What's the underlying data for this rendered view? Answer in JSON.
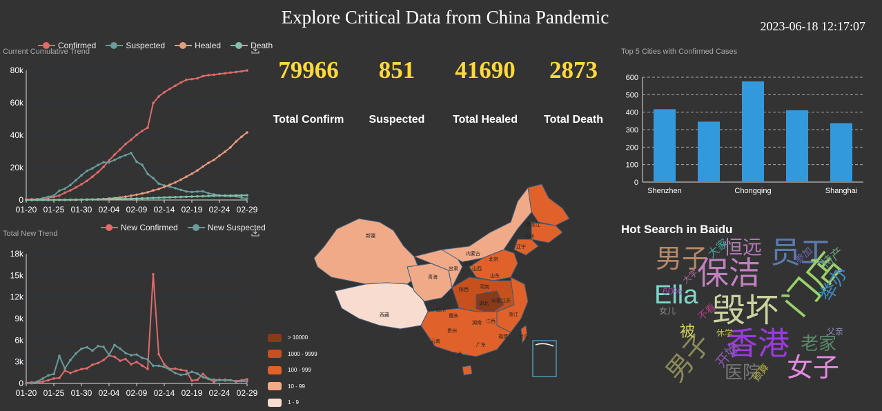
{
  "header": {
    "title": "Explore Critical Data from China Pandemic",
    "datetime": "2023-06-18 12:17:07"
  },
  "stats": [
    {
      "value": "79966",
      "label": "Total Confirm"
    },
    {
      "value": "851",
      "label": "Suspected"
    },
    {
      "value": "41690",
      "label": "Total Healed"
    },
    {
      "value": "2873",
      "label": "Total Death"
    }
  ],
  "colors": {
    "confirmed": "#e06a6a",
    "suspected": "#6a9a9a",
    "healed": "#e89a80",
    "death": "#7fc3a5",
    "bar": "#3399dd",
    "highlight": "#ffd83b"
  },
  "trend_panel": {
    "caption": "Current Cumulative Trend",
    "download_icon": "download-icon"
  },
  "new_panel": {
    "caption": "Total New Trend",
    "download_icon": "download-icon"
  },
  "bar_panel": {
    "caption": "Top 5 Cities with Confirmed Cases"
  },
  "map_panel": {
    "legend": [
      {
        "label": "> 10000",
        "color": "#8a3a1a"
      },
      {
        "label": "1000 - 9999",
        "color": "#c8501c"
      },
      {
        "label": "100 - 999",
        "color": "#e0622a"
      },
      {
        "label": "10 - 99",
        "color": "#f0aa88"
      },
      {
        "label": "1 - 9",
        "color": "#f9dcd0"
      }
    ],
    "province_labels": [
      "新疆",
      "西藏",
      "青海",
      "甘肃",
      "内蒙古",
      "黑龙江",
      "吉林",
      "辽宁",
      "北京",
      "宁夏",
      "山西",
      "山东",
      "陕西",
      "河南",
      "四川",
      "湖北",
      "安徽",
      "江苏",
      "重庆",
      "湖南",
      "江西",
      "浙江",
      "贵州",
      "云南",
      "广西",
      "广东",
      "福建",
      "台湾"
    ]
  },
  "hot_search": {
    "title": "Hot Search in Baidu",
    "words": [
      {
        "text": "男子",
        "color": "#b68a6a"
      },
      {
        "text": "恒远",
        "color": "#b07ab0"
      },
      {
        "text": "员工",
        "color": "#5a7ab0"
      },
      {
        "text": "保洁",
        "color": "#c080c0"
      },
      {
        "text": "Ella",
        "color": "#7fd6c8"
      },
      {
        "text": "毁坏",
        "color": "#c9d3a0"
      },
      {
        "text": "门店",
        "color": "#9ad06a"
      },
      {
        "text": "举办",
        "color": "#3a8ac0"
      },
      {
        "text": "香港",
        "color": "#9b3ae0"
      },
      {
        "text": "男子",
        "color": "#8a8a5a"
      },
      {
        "text": "医院",
        "color": "#777"
      },
      {
        "text": "女子",
        "color": "#e28ae0"
      },
      {
        "text": "老家",
        "color": "#5a8a6a"
      },
      {
        "text": "开始",
        "color": "#8a5ab0"
      },
      {
        "text": "大家",
        "color": "#4aa0a0"
      },
      {
        "text": "特产",
        "color": "#6aa07a"
      },
      {
        "text": "60%",
        "color": "#9a4ab0"
      },
      {
        "text": "不看",
        "color": "#b04080"
      },
      {
        "text": "女儿",
        "color": "#888"
      },
      {
        "text": "休学",
        "color": "#c0c04a"
      },
      {
        "text": "父亲",
        "color": "#9090c0"
      },
      {
        "text": "预算",
        "color": "#b0b040"
      },
      {
        "text": "大学",
        "color": "#b06a9a"
      },
      {
        "text": "参加",
        "color": "#6a6ab0"
      },
      {
        "text": "被",
        "color": "#d0d060"
      }
    ]
  },
  "chart_data": [
    {
      "type": "line",
      "title": "Current Cumulative Trend",
      "x": [
        "01-20",
        "01-21",
        "01-22",
        "01-23",
        "01-24",
        "01-25",
        "01-26",
        "01-27",
        "01-28",
        "01-29",
        "01-30",
        "01-31",
        "02-01",
        "02-02",
        "02-03",
        "02-04",
        "02-05",
        "02-06",
        "02-07",
        "02-08",
        "02-09",
        "02-10",
        "02-11",
        "02-12",
        "02-13",
        "02-14",
        "02-15",
        "02-16",
        "02-17",
        "02-18",
        "02-19",
        "02-20",
        "02-21",
        "02-22",
        "02-23",
        "02-24",
        "02-25",
        "02-26",
        "02-27",
        "02-28",
        "02-29"
      ],
      "xticks": [
        "01-20",
        "01-25",
        "01-30",
        "02-04",
        "02-09",
        "02-14",
        "02-19",
        "02-24",
        "02-29"
      ],
      "yticks": [
        "0",
        "20k",
        "40k",
        "60k",
        "80k"
      ],
      "ylim": [
        0,
        80000
      ],
      "legend_position": "top",
      "grid": true,
      "series": [
        {
          "name": "Confirmed",
          "values": [
            291,
            440,
            571,
            830,
            1287,
            1975,
            2744,
            4515,
            5974,
            7711,
            9692,
            11791,
            14380,
            17205,
            20438,
            24324,
            28018,
            31161,
            34546,
            37198,
            40171,
            42638,
            44653,
            59804,
            63851,
            66492,
            68500,
            70548,
            72436,
            74185,
            74576,
            75077,
            76392,
            77042,
            77262,
            77780,
            78191,
            78630,
            78961,
            79394,
            79966
          ]
        },
        {
          "name": "Suspected",
          "values": [
            54,
            37,
            393,
            1072,
            1965,
            2684,
            5794,
            6973,
            9239,
            12167,
            15238,
            17988,
            19544,
            21558,
            23214,
            23260,
            24702,
            26359,
            27657,
            28942,
            23589,
            21675,
            16067,
            13435,
            10109,
            8969,
            8228,
            7264,
            6242,
            5248,
            4922,
            5206,
            5365,
            4148,
            3434,
            2824,
            2491,
            2358,
            2308,
            1418,
            851
          ]
        },
        {
          "name": "Healed",
          "values": [
            25,
            25,
            28,
            34,
            38,
            49,
            51,
            60,
            103,
            124,
            171,
            243,
            328,
            475,
            632,
            892,
            1153,
            1540,
            2050,
            2649,
            3281,
            3996,
            4740,
            5911,
            6723,
            8096,
            9419,
            10844,
            12552,
            14376,
            16155,
            18264,
            20659,
            22888,
            24734,
            27323,
            29745,
            32495,
            36117,
            39002,
            41690
          ]
        },
        {
          "name": "Death",
          "values": [
            6,
            9,
            17,
            25,
            41,
            56,
            80,
            106,
            132,
            170,
            213,
            259,
            304,
            361,
            425,
            490,
            563,
            636,
            722,
            811,
            908,
            1016,
            1113,
            1259,
            1380,
            1523,
            1665,
            1770,
            1868,
            2004,
            2118,
            2236,
            2345,
            2442,
            2592,
            2663,
            2715,
            2744,
            2788,
            2835,
            2873
          ]
        }
      ]
    },
    {
      "type": "line",
      "title": "Total New Trend",
      "x": [
        "01-20",
        "01-21",
        "01-22",
        "01-23",
        "01-24",
        "01-25",
        "01-26",
        "01-27",
        "01-28",
        "01-29",
        "01-30",
        "01-31",
        "02-01",
        "02-02",
        "02-03",
        "02-04",
        "02-05",
        "02-06",
        "02-07",
        "02-08",
        "02-09",
        "02-10",
        "02-11",
        "02-12",
        "02-13",
        "02-14",
        "02-15",
        "02-16",
        "02-17",
        "02-18",
        "02-19",
        "02-20",
        "02-21",
        "02-22",
        "02-23",
        "02-24",
        "02-25",
        "02-26",
        "02-27",
        "02-28",
        "02-29"
      ],
      "xticks": [
        "01-20",
        "01-25",
        "01-30",
        "02-04",
        "02-09",
        "02-14",
        "02-19",
        "02-24",
        "02-29"
      ],
      "yticks": [
        "0",
        "3k",
        "6k",
        "9k",
        "12k",
        "15k",
        "18k"
      ],
      "ylim": [
        0,
        18000
      ],
      "legend_position": "top",
      "grid": true,
      "series": [
        {
          "name": "New Confirmed",
          "values": [
            77,
            149,
            131,
            259,
            444,
            688,
            769,
            1771,
            1459,
            1737,
            1981,
            2099,
            2589,
            2825,
            3233,
            3886,
            3694,
            3143,
            3385,
            2652,
            2973,
            2467,
            2015,
            15152,
            4047,
            2641,
            2008,
            2048,
            1888,
            1749,
            391,
            501,
            1315,
            650,
            220,
            518,
            411,
            439,
            331,
            433,
            572
          ]
        },
        {
          "name": "New Suspected",
          "values": [
            27,
            23,
            257,
            680,
            1118,
            1309,
            3806,
            2077,
            3248,
            4148,
            4812,
            5019,
            4562,
            5173,
            5072,
            3971,
            5328,
            4833,
            4214,
            3916,
            4008,
            3536,
            3342,
            2450,
            2450,
            2277,
            1918,
            1432,
            1185,
            1277,
            1614,
            1361,
            882,
            620,
            530,
            439,
            508,
            452,
            248,
            327,
            264
          ]
        }
      ]
    },
    {
      "type": "bar",
      "title": "Top 5 Cities with Confirmed Cases",
      "categories": [
        "Shenzhen",
        "",
        "Chongqing",
        "",
        "Shanghai"
      ],
      "values": [
        417,
        346,
        576,
        411,
        337
      ],
      "yticks": [
        "0",
        "100",
        "200",
        "300",
        "400",
        "500",
        "600"
      ],
      "ylim": [
        0,
        600
      ],
      "grid": true
    }
  ]
}
